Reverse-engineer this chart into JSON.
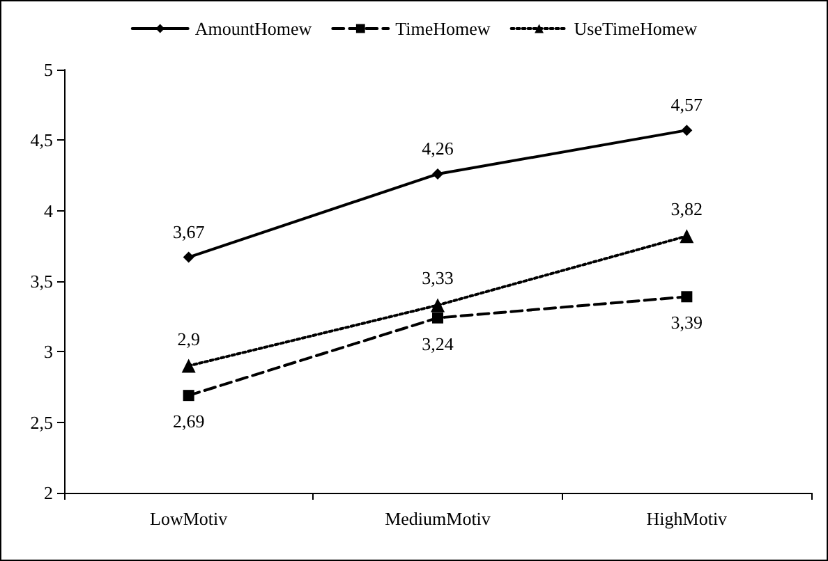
{
  "chart_data": {
    "type": "line",
    "categories": [
      "LowMotiv",
      "MediumMotiv",
      "HighMotiv"
    ],
    "series": [
      {
        "name": "AmountHomew",
        "color": "#000000",
        "values": [
          3.67,
          4.26,
          4.57
        ],
        "value_labels": [
          "3,67",
          "4,26",
          "4,57"
        ],
        "marker": "diamond",
        "line_style": "solid"
      },
      {
        "name": "TimeHomew",
        "color": "#000000",
        "values": [
          2.69,
          3.24,
          3.39
        ],
        "value_labels": [
          "2,69",
          "3,24",
          "3,39"
        ],
        "marker": "square",
        "line_style": "dashed"
      },
      {
        "name": "UseTimeHomew",
        "color": "#000000",
        "values": [
          2.9,
          3.33,
          3.82
        ],
        "value_labels": [
          "2,9",
          "3,33",
          "3,82"
        ],
        "marker": "triangle",
        "line_style": "dotted"
      }
    ],
    "ylim": [
      2,
      5
    ],
    "yticks": [
      2,
      {
        "value": 2.5,
        "label": "2,5"
      },
      3,
      {
        "value": 3.5,
        "label": "3,5"
      },
      4,
      {
        "value": 4.5,
        "label": "4,5"
      },
      5
    ],
    "grid": false,
    "legend": "top"
  }
}
